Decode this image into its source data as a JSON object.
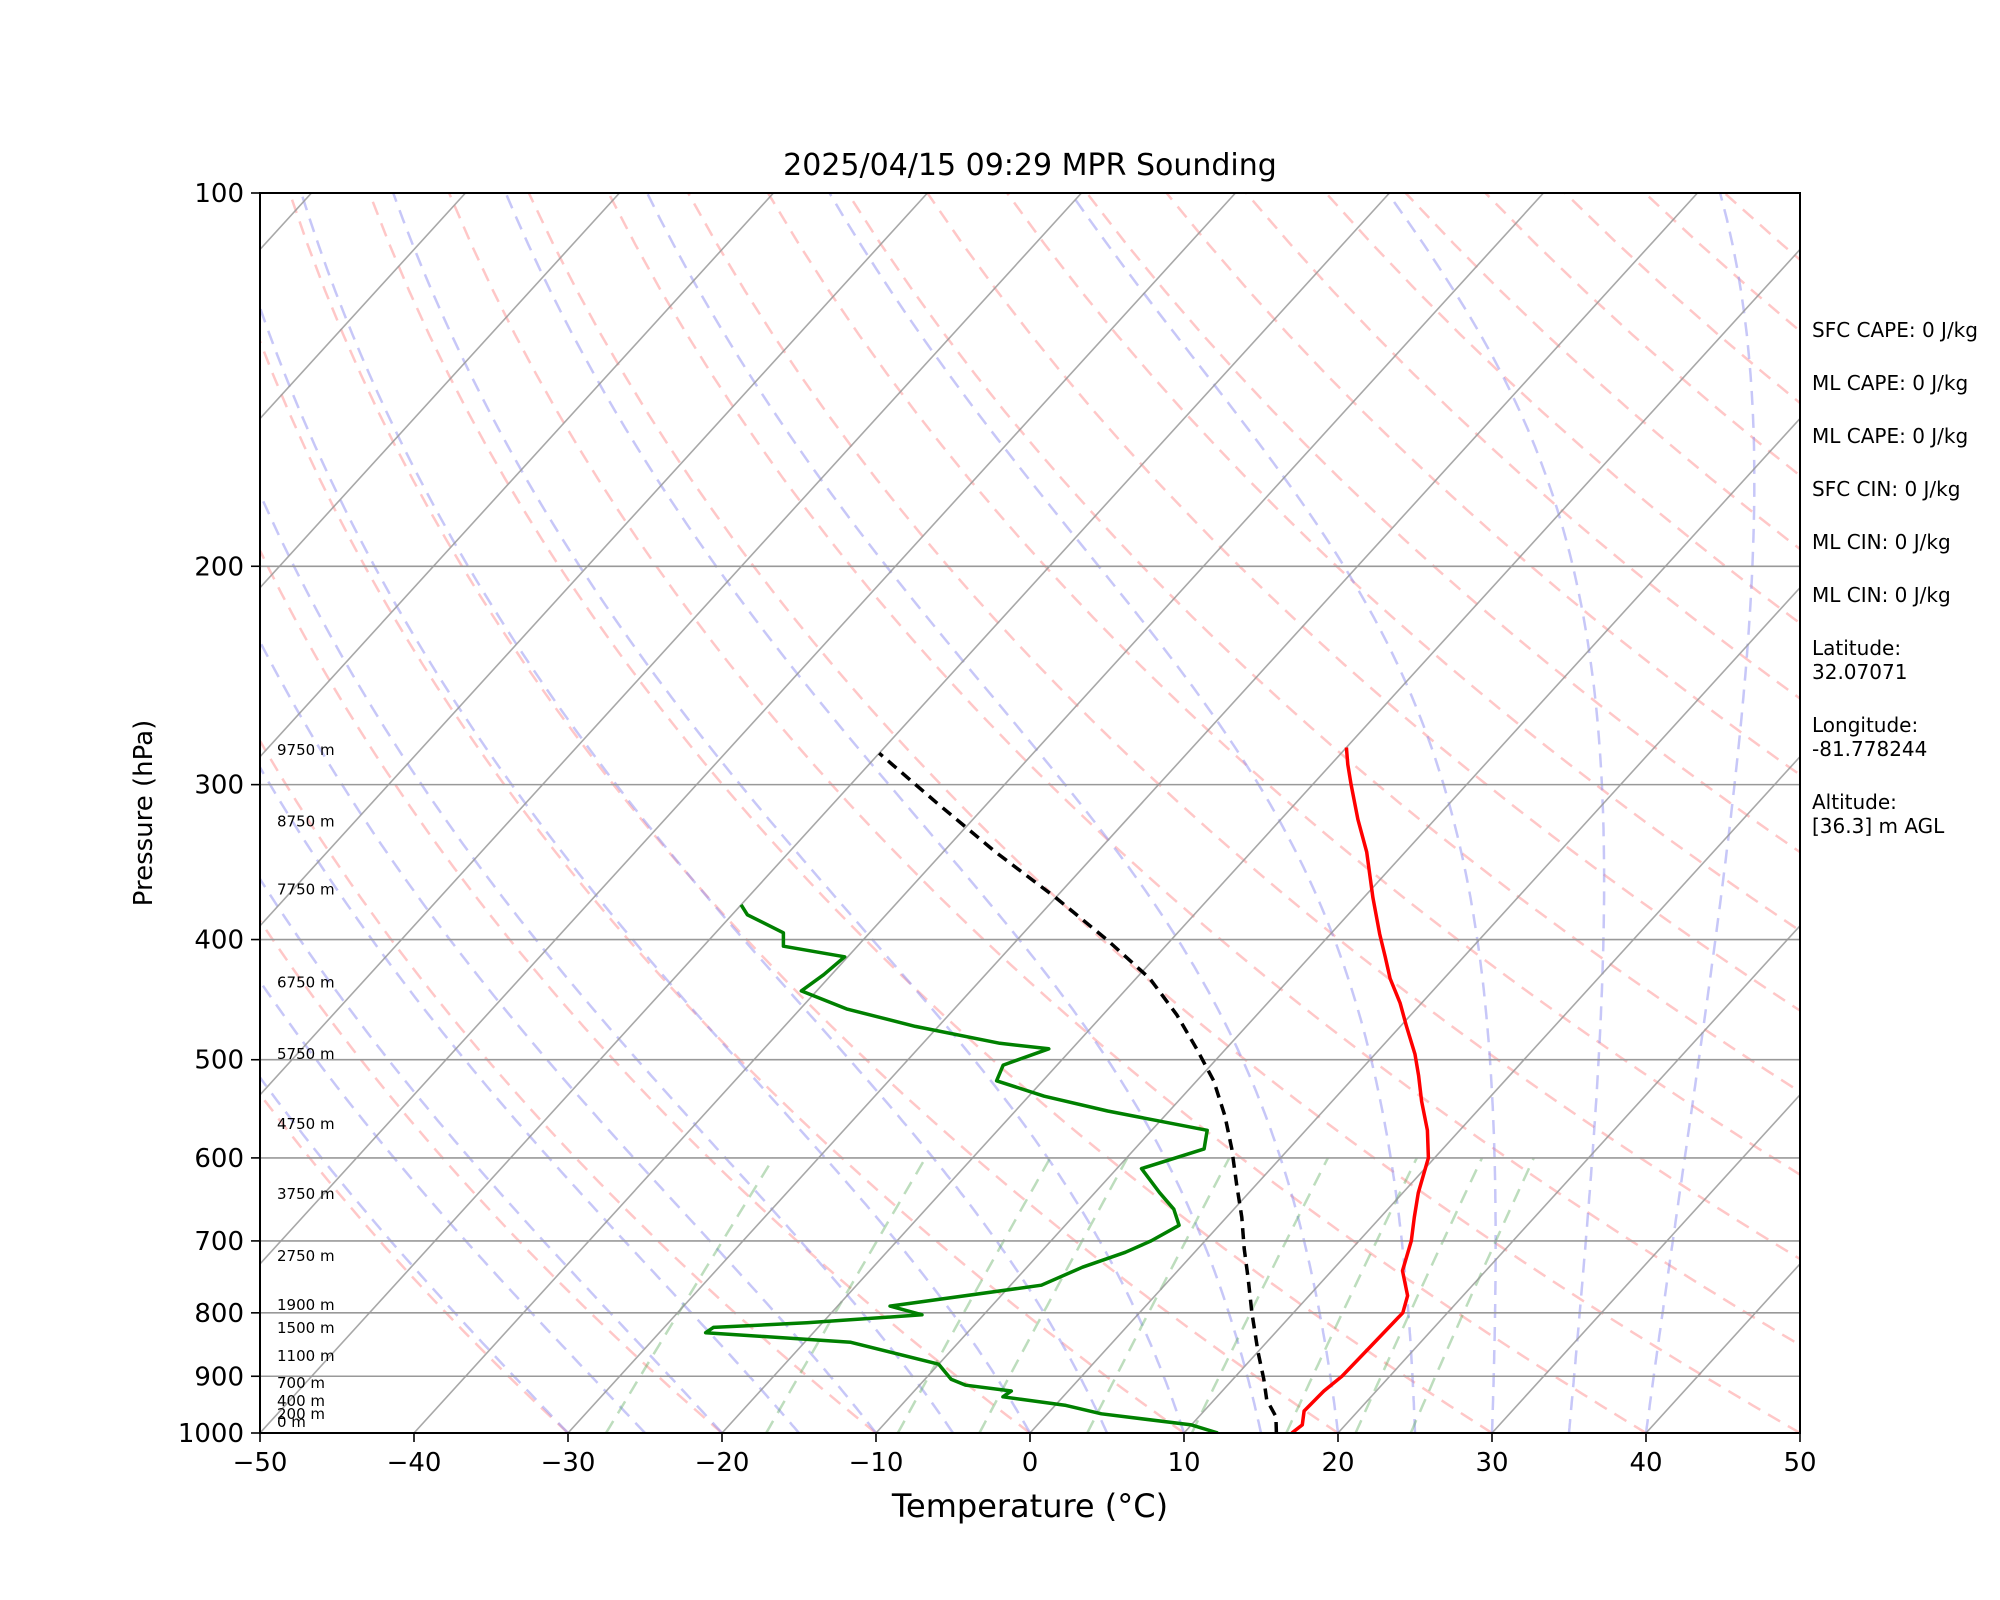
{
  "chart_data": {
    "type": "line",
    "title": "2025/04/15 09:29 MPR Sounding",
    "xlabel": "Temperature (°C)",
    "ylabel": "Pressure (hPa)",
    "xlim": [
      -50,
      50
    ],
    "ylim": [
      1000,
      100
    ],
    "y_scale": "log",
    "x_ticks": [
      "−50",
      "−40",
      "−30",
      "−20",
      "−10",
      "0",
      "10",
      "20",
      "30",
      "40",
      "50"
    ],
    "y_ticks": [
      "100",
      "200",
      "300",
      "400",
      "500",
      "600",
      "700",
      "800",
      "900",
      "1000"
    ],
    "grid": true,
    "series": [
      {
        "color": "#ff0000",
        "points": [
          [
            17.0,
            1000
          ],
          [
            17.2,
            985
          ],
          [
            16.5,
            960
          ],
          [
            16.6,
            925
          ],
          [
            16.9,
            900
          ],
          [
            17.0,
            850
          ],
          [
            17.1,
            800
          ],
          [
            16.4,
            775
          ],
          [
            14.6,
            740
          ],
          [
            13.4,
            700
          ],
          [
            12.2,
            670
          ],
          [
            11.0,
            640
          ],
          [
            9.6,
            600
          ],
          [
            7.9,
            570
          ],
          [
            5.8,
            540
          ],
          [
            4.1,
            515
          ],
          [
            2.6,
            495
          ],
          [
            0.4,
            470
          ],
          [
            -1.4,
            450
          ],
          [
            -3.5,
            430
          ],
          [
            -5.1,
            413
          ],
          [
            -6.8,
            396
          ],
          [
            -9.4,
            370
          ],
          [
            -12.5,
            340
          ],
          [
            -15.0,
            320
          ],
          [
            -17.5,
            300
          ],
          [
            -18.9,
            289
          ],
          [
            -20.0,
            280
          ]
        ]
      },
      {
        "color": "#008000",
        "points": [
          [
            12.2,
            1000
          ],
          [
            10.0,
            985
          ],
          [
            3.5,
            965
          ],
          [
            0.7,
            950
          ],
          [
            -3.9,
            935
          ],
          [
            -3.7,
            925
          ],
          [
            -7.0,
            915
          ],
          [
            -8.3,
            905
          ],
          [
            -10.0,
            880
          ],
          [
            -17.0,
            845
          ],
          [
            -27.0,
            830
          ],
          [
            -26.8,
            822
          ],
          [
            -21.0,
            815
          ],
          [
            -14.0,
            803
          ],
          [
            -16.6,
            790
          ],
          [
            -8.0,
            760
          ],
          [
            -6.4,
            735
          ],
          [
            -4.5,
            715
          ],
          [
            -3.5,
            700
          ],
          [
            -2.6,
            680
          ],
          [
            -3.9,
            660
          ],
          [
            -5.8,
            640
          ],
          [
            -8.4,
            612
          ],
          [
            -5.5,
            590
          ],
          [
            -6.4,
            570
          ],
          [
            -14.0,
            550
          ],
          [
            -19.0,
            535
          ],
          [
            -23.0,
            520
          ],
          [
            -23.5,
            505
          ],
          [
            -21.5,
            490
          ],
          [
            -25.0,
            485
          ],
          [
            -31.5,
            470
          ],
          [
            -37.0,
            455
          ],
          [
            -41.0,
            440
          ],
          [
            -40.5,
            427
          ],
          [
            -40.2,
            413
          ],
          [
            -44.8,
            405
          ],
          [
            -45.6,
            395
          ],
          [
            -49.0,
            382
          ],
          [
            -50.0,
            375
          ]
        ]
      },
      {
        "color": "#000000",
        "dashed": true,
        "points": [
          [
            16.0,
            1000
          ],
          [
            15.0,
            970
          ],
          [
            13.4,
            940
          ],
          [
            12.0,
            905
          ],
          [
            10.0,
            860
          ],
          [
            7.3,
            800
          ],
          [
            5.0,
            750
          ],
          [
            3.0,
            710
          ],
          [
            1.0,
            670
          ],
          [
            -1.3,
            630
          ],
          [
            -3.7,
            590
          ],
          [
            -6.1,
            555
          ],
          [
            -8.9,
            520
          ],
          [
            -11.9,
            490
          ],
          [
            -15.2,
            460
          ],
          [
            -19.1,
            430
          ],
          [
            -24.2,
            400
          ],
          [
            -30.0,
            370
          ],
          [
            -36.6,
            340
          ],
          [
            -43.4,
            310
          ],
          [
            -50.0,
            283
          ]
        ]
      }
    ],
    "annotations": [
      "0 m",
      "200 m",
      "400 m",
      "700 m",
      "1100 m",
      "1500 m",
      "1900 m",
      "2750 m",
      "3750 m",
      "4750 m",
      "5750 m",
      "6750 m",
      "7750 m",
      "8750 m",
      "9750 m"
    ],
    "side_text": [
      "SFC CAPE: 0 J/kg",
      "ML CAPE: 0 J/kg",
      "ML CAPE: 0 J/kg",
      "SFC CIN: 0 J/kg",
      "ML CIN: 0 J/kg",
      "ML CIN: 0 J/kg",
      "Latitude:\n32.07071",
      "Longitude:\n-81.778244",
      "Altitude:\n[36.3] m AGL"
    ]
  }
}
